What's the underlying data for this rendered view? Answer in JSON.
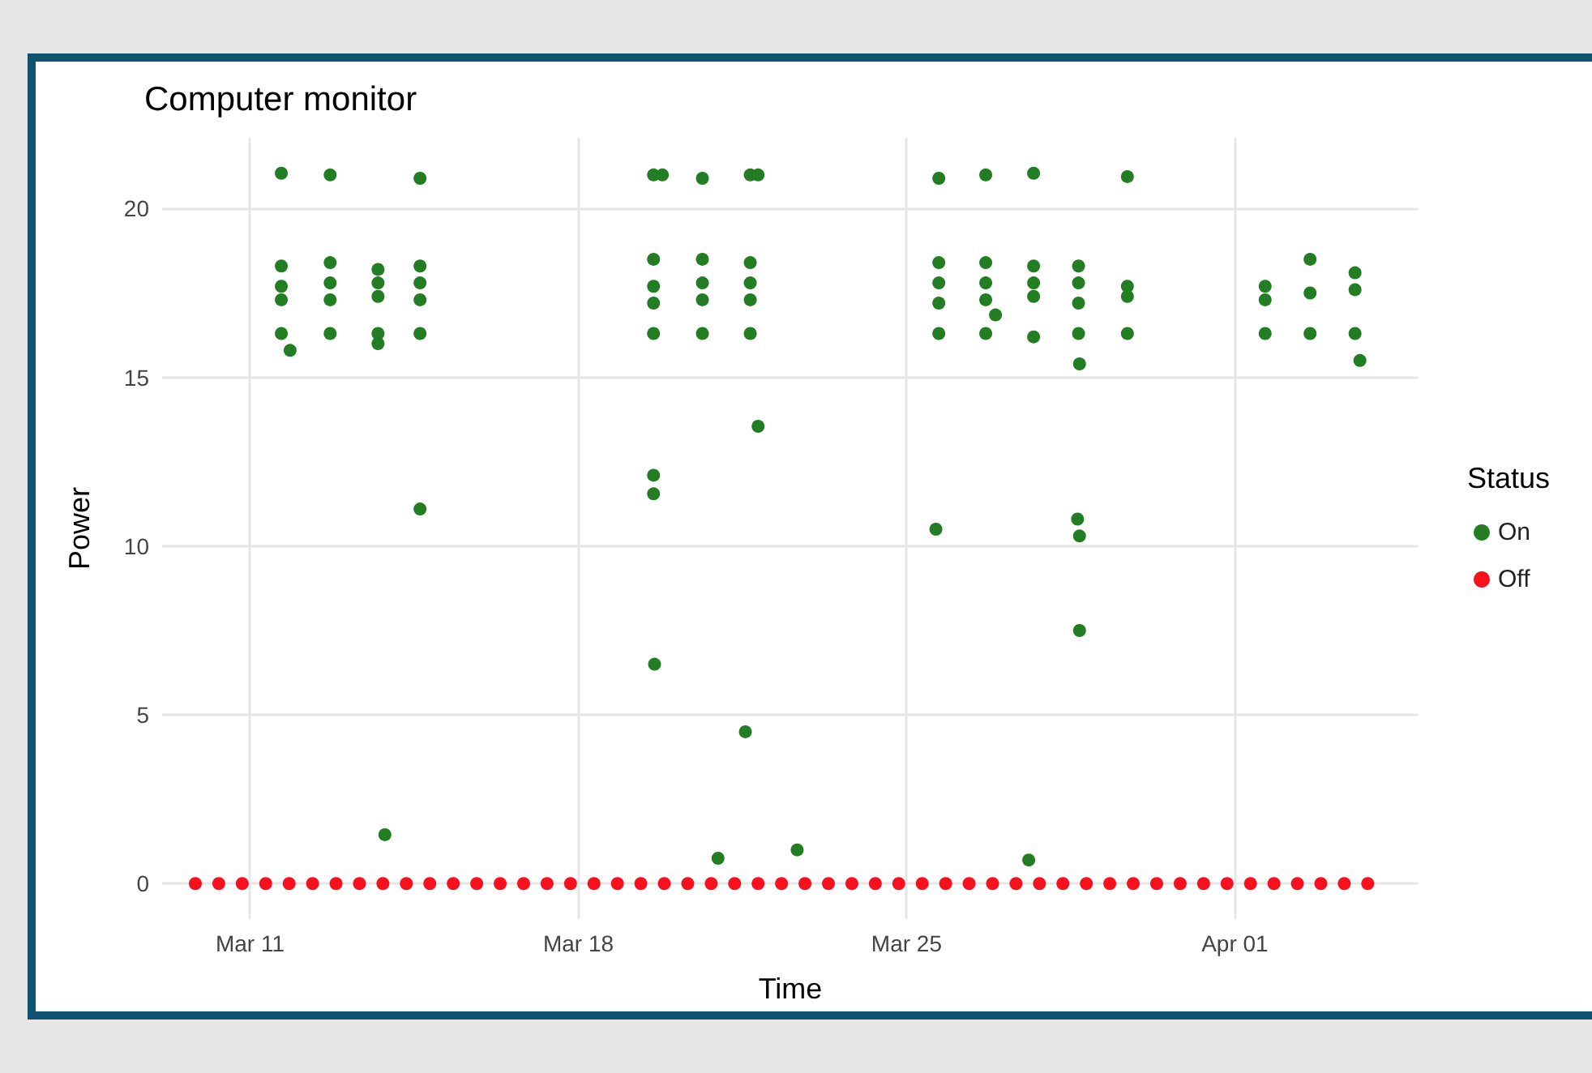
{
  "chart_data": {
    "type": "scatter",
    "title": "Computer monitor",
    "xlabel": "Time",
    "ylabel": "Power",
    "legend_title": "Status",
    "legend": "right",
    "grid": true,
    "marker": "circle",
    "xlim": [
      "--03-09T03:00",
      "--04-04T22:00"
    ],
    "xticks": [
      {
        "value": "--03-11",
        "label": "Mar 11"
      },
      {
        "value": "--03-18",
        "label": "Mar 18"
      },
      {
        "value": "--03-25",
        "label": "Mar 25"
      },
      {
        "value": "--04-01",
        "label": "Apr 01"
      }
    ],
    "ylim": [
      -1.05,
      22.1
    ],
    "yticks": [
      0,
      5,
      10,
      15,
      20
    ],
    "series": [
      {
        "name": "On",
        "color": "#237d23",
        "x": [
          "--03-11T16:00",
          "--03-11T16:00",
          "--03-11T16:00",
          "--03-11T16:00",
          "--03-11T16:00",
          "--03-11T20:30",
          "--03-12T17:00",
          "--03-12T17:00",
          "--03-12T17:00",
          "--03-12T17:00",
          "--03-12T17:00",
          "--03-13T17:30",
          "--03-13T17:30",
          "--03-13T17:30",
          "--03-13T17:30",
          "--03-13T17:30",
          "--03-13T21:00",
          "--03-14T15:00",
          "--03-14T15:00",
          "--03-14T15:00",
          "--03-14T15:00",
          "--03-14T15:00",
          "--03-14T15:00",
          "--03-19T14:30",
          "--03-19T14:30",
          "--03-19T14:30",
          "--03-19T14:30",
          "--03-19T14:30",
          "--03-19T14:30",
          "--03-19T14:30",
          "--03-19T15:00",
          "--03-19T19:00",
          "--03-20T15:30",
          "--03-20T15:30",
          "--03-20T15:30",
          "--03-20T15:30",
          "--03-20T15:30",
          "--03-20T23:30",
          "--03-21T16:00",
          "--03-21T16:00",
          "--03-21T16:00",
          "--03-21T16:00",
          "--03-21T16:00",
          "--03-21T13:30",
          "--03-21T20:00",
          "--03-21T20:00",
          "--03-22T16:00",
          "--03-25T16:30",
          "--03-25T16:30",
          "--03-25T16:30",
          "--03-25T16:30",
          "--03-25T16:30",
          "--03-25T15:00",
          "--03-26T16:30",
          "--03-26T16:30",
          "--03-26T16:30",
          "--03-26T16:30",
          "--03-26T16:30",
          "--03-26T21:30",
          "--03-27T17:00",
          "--03-27T17:00",
          "--03-27T17:00",
          "--03-27T17:00",
          "--03-27T17:00",
          "--03-27T14:30",
          "--03-28T16:00",
          "--03-28T16:00",
          "--03-28T16:00",
          "--03-28T16:00",
          "--03-28T15:30",
          "--03-28T16:30",
          "--03-28T16:30",
          "--03-28T16:30",
          "--03-29T17:00",
          "--03-29T17:00",
          "--03-29T17:00",
          "--03-29T17:00",
          "--04-01T15:30",
          "--04-01T15:30",
          "--04-01T15:30",
          "--04-02T14:30",
          "--04-02T14:30",
          "--04-02T14:30",
          "--04-03T13:30",
          "--04-03T13:30",
          "--04-03T13:30",
          "--04-03T16:00"
        ],
        "values": [
          16.3,
          17.3,
          17.7,
          18.3,
          21.05,
          15.8,
          16.3,
          17.3,
          17.8,
          18.4,
          21.0,
          16.0,
          16.3,
          17.4,
          17.8,
          18.2,
          1.45,
          16.3,
          17.3,
          17.8,
          18.3,
          20.9,
          11.1,
          16.3,
          17.2,
          17.7,
          18.5,
          21.0,
          12.1,
          11.55,
          6.5,
          21.0,
          16.3,
          17.3,
          17.8,
          18.5,
          20.9,
          0.75,
          16.3,
          17.3,
          17.8,
          18.4,
          21.0,
          4.5,
          13.55,
          21.0,
          1.0,
          16.3,
          17.2,
          17.8,
          18.4,
          20.9,
          10.5,
          16.3,
          17.3,
          17.8,
          18.4,
          21.0,
          16.85,
          16.2,
          17.4,
          17.8,
          18.3,
          21.05,
          0.7,
          16.3,
          17.2,
          17.8,
          18.3,
          10.8,
          10.3,
          7.5,
          15.4,
          16.3,
          17.4,
          17.7,
          20.95,
          16.3,
          17.3,
          17.7,
          16.3,
          17.5,
          18.5,
          16.3,
          17.6,
          18.1,
          15.5
        ]
      },
      {
        "name": "Off",
        "color": "#f8101f",
        "x": [
          "--03-09T20:00",
          "--03-10T08:00",
          "--03-10T20:00",
          "--03-11T08:00",
          "--03-11T20:00",
          "--03-12T08:00",
          "--03-12T20:00",
          "--03-13T08:00",
          "--03-13T20:00",
          "--03-14T08:00",
          "--03-14T20:00",
          "--03-15T08:00",
          "--03-15T20:00",
          "--03-16T08:00",
          "--03-16T20:00",
          "--03-17T08:00",
          "--03-17T20:00",
          "--03-18T08:00",
          "--03-18T20:00",
          "--03-19T08:00",
          "--03-19T20:00",
          "--03-20T08:00",
          "--03-20T20:00",
          "--03-21T08:00",
          "--03-21T20:00",
          "--03-22T08:00",
          "--03-22T20:00",
          "--03-23T08:00",
          "--03-23T20:00",
          "--03-24T08:00",
          "--03-24T20:00",
          "--03-25T08:00",
          "--03-25T20:00",
          "--03-26T08:00",
          "--03-26T20:00",
          "--03-27T08:00",
          "--03-27T20:00",
          "--03-28T08:00",
          "--03-28T20:00",
          "--03-29T08:00",
          "--03-29T20:00",
          "--03-30T08:00",
          "--03-30T20:00",
          "--03-31T08:00",
          "--03-31T20:00",
          "--04-01T08:00",
          "--04-01T20:00",
          "--04-02T08:00",
          "--04-02T20:00",
          "--04-03T08:00",
          "--04-03T20:00"
        ],
        "values": [
          0,
          0,
          0,
          0,
          0,
          0,
          0,
          0,
          0,
          0,
          0,
          0,
          0,
          0,
          0,
          0,
          0,
          0,
          0,
          0,
          0,
          0,
          0,
          0,
          0,
          0,
          0,
          0,
          0,
          0,
          0,
          0,
          0,
          0,
          0,
          0,
          0,
          0,
          0,
          0,
          0,
          0,
          0,
          0,
          0,
          0,
          0,
          0,
          0,
          0,
          0
        ]
      }
    ]
  }
}
